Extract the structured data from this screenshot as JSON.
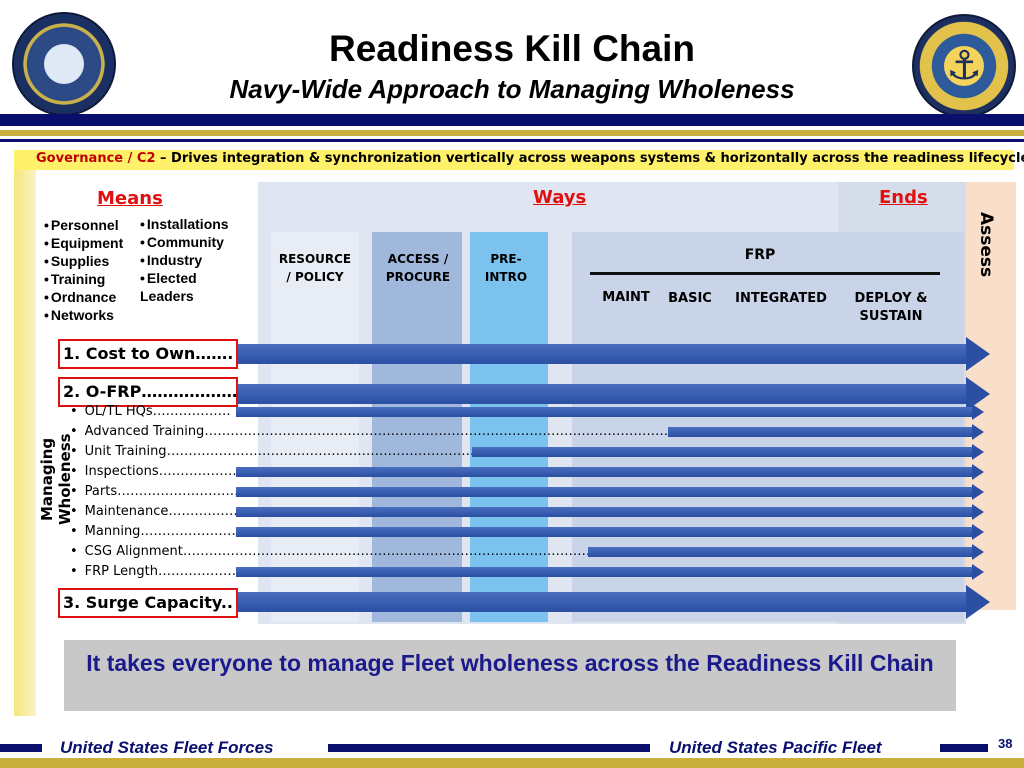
{
  "header": {
    "title": "Readiness Kill Chain",
    "subtitle": "Navy-Wide Approach to Managing Wholeness",
    "logo_left_icon": "eagle-seal-icon",
    "logo_right_icon": "anchor-seal-icon"
  },
  "governance": {
    "prefix": "Governance / C2",
    "text": " – Drives integration & synchronization vertically across weapons systems & horizontally across the readiness lifecycle"
  },
  "means": {
    "heading": "Means",
    "col1": [
      "Personnel",
      "Equipment",
      "Supplies",
      "Training",
      "Ordnance",
      "Networks"
    ],
    "col2": [
      "Installations",
      "Community",
      "Industry",
      "Elected Leaders"
    ]
  },
  "ways": {
    "heading": "Ways",
    "resource": "RESOURCE / POLICY",
    "access": "ACCESS / PROCURE",
    "pre_intro": "PRE-INTRO",
    "frp": "FRP",
    "maint": "MAINT",
    "basic": "BASIC",
    "integrated": "INTEGRATED"
  },
  "ends": {
    "heading": "Ends",
    "deploy": "DEPLOY & SUSTAIN"
  },
  "assess": "Assess",
  "managing_label": "Managing Wholeness",
  "rows": {
    "cost": "1. Cost to Own…….",
    "ofrp": "2. O-FRP………………",
    "oltl": "OL/TL HQs………………",
    "adv_training": "Advanced Training……………………………………………………………………………………………………………………",
    "unit_training": "Unit Training……………………………………………………………………",
    "inspections": "Inspections…………………",
    "parts": "Parts…………………………",
    "maintenance": "Maintenance………………",
    "manning": "Manning……………………",
    "csg": "CSG Alignment………………………………………………………………………………………………",
    "frp_length": "FRP Length…………………",
    "surge": "3. Surge Capacity.."
  },
  "bottom_message": "It takes everyone to manage Fleet wholeness across the  Readiness Kill Chain",
  "footer": {
    "left": "United States Fleet Forces",
    "right": "United States Pacific Fleet",
    "page": "38"
  }
}
